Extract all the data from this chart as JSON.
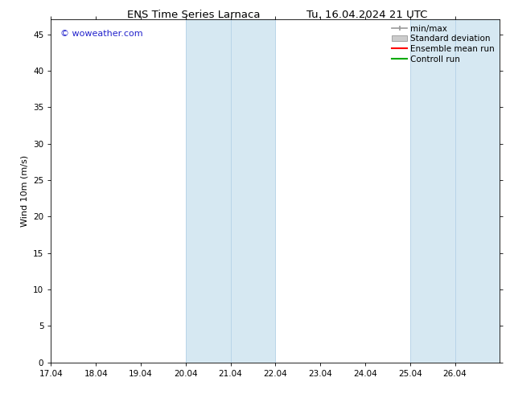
{
  "title_left": "ENS Time Series Larnaca",
  "title_right": "Tu. 16.04.2024 21 UTC",
  "ylabel": "Wind 10m (m/s)",
  "ylim": [
    0,
    47
  ],
  "yticks": [
    0,
    5,
    10,
    15,
    20,
    25,
    30,
    35,
    40,
    45
  ],
  "xlim_days": [
    0,
    10
  ],
  "xtick_positions_days": [
    0,
    1,
    2,
    3,
    4,
    5,
    6,
    7,
    8,
    9
  ],
  "xtick_labels": [
    "17.04",
    "18.04",
    "19.04",
    "20.04",
    "21.04",
    "22.04",
    "23.04",
    "24.04",
    "25.04",
    "26.04"
  ],
  "watermark": "© woweather.com",
  "watermark_color": "#2222cc",
  "background_color": "#ffffff",
  "plot_bg_color": "#ffffff",
  "shaded_regions": [
    {
      "x_start": 3,
      "x_end": 5,
      "color": "#d6e8f2"
    },
    {
      "x_start": 8,
      "x_end": 10,
      "color": "#d6e8f2"
    }
  ],
  "shaded_region_vlines": [
    {
      "x": 3,
      "color": "#b8d4e8"
    },
    {
      "x": 4,
      "color": "#b8d4e8"
    },
    {
      "x": 5,
      "color": "#b8d4e8"
    },
    {
      "x": 8,
      "color": "#b8d4e8"
    },
    {
      "x": 9,
      "color": "#b8d4e8"
    },
    {
      "x": 10,
      "color": "#b8d4e8"
    }
  ],
  "legend_entries": [
    {
      "label": "min/max",
      "color": "#999999",
      "style": "line_with_cap"
    },
    {
      "label": "Standard deviation",
      "color": "#cccccc",
      "style": "filled_rect"
    },
    {
      "label": "Ensemble mean run",
      "color": "#ff0000",
      "style": "line"
    },
    {
      "label": "Controll run",
      "color": "#00aa00",
      "style": "line"
    }
  ],
  "title_fontsize": 9.5,
  "axis_label_fontsize": 8,
  "tick_fontsize": 7.5,
  "legend_fontsize": 7.5,
  "watermark_fontsize": 8
}
